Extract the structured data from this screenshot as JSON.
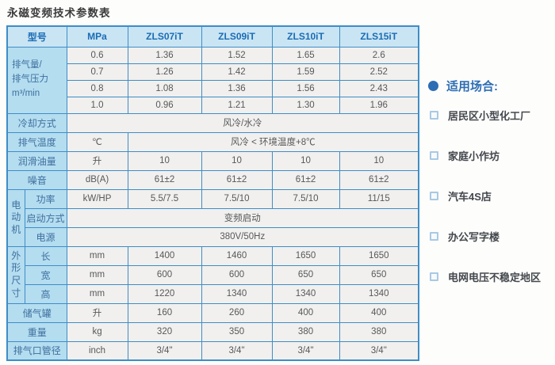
{
  "title": "永磁变频技术参数表",
  "colors": {
    "table_border": "#3f8dc6",
    "header_bg": "#c9e5f4",
    "label_bg": "#b4ddf0",
    "cell_bg": "#f1f0ee",
    "header_text": "#1b6cb5",
    "label_text": "#3f6f9e",
    "value_text": "#57585a",
    "accent": "#2d6db4"
  },
  "table": {
    "header": [
      {
        "t": "型号",
        "cs": 2
      },
      {
        "t": "MPa"
      },
      {
        "t": "ZLS07iT"
      },
      {
        "t": "ZLS09iT"
      },
      {
        "t": "ZLS10iT"
      },
      {
        "t": "ZLS15iT"
      }
    ],
    "rows": [
      [
        {
          "t": "排气量/\n排气压力\nm³/min",
          "c": "lab left",
          "cs": 2,
          "rs": 4
        },
        {
          "t": "0.6"
        },
        {
          "t": "1.36"
        },
        {
          "t": "1.52"
        },
        {
          "t": "1.65"
        },
        {
          "t": "2.6"
        }
      ],
      [
        {
          "t": "0.7"
        },
        {
          "t": "1.26"
        },
        {
          "t": "1.42"
        },
        {
          "t": "1.59"
        },
        {
          "t": "2.52"
        }
      ],
      [
        {
          "t": "0.8"
        },
        {
          "t": "1.08"
        },
        {
          "t": "1.36"
        },
        {
          "t": "1.56"
        },
        {
          "t": "2.43"
        }
      ],
      [
        {
          "t": "1.0"
        },
        {
          "t": "0.96"
        },
        {
          "t": "1.21"
        },
        {
          "t": "1.30"
        },
        {
          "t": "1.96"
        }
      ],
      [
        {
          "t": "冷却方式",
          "c": "lab",
          "cs": 2
        },
        {
          "t": "风冷/水冷",
          "cs": 5
        }
      ],
      [
        {
          "t": "排气温度",
          "c": "lab",
          "cs": 2
        },
        {
          "t": "℃"
        },
        {
          "t": "风冷 < 环境温度+8℃",
          "cs": 4
        }
      ],
      [
        {
          "t": "润滑油量",
          "c": "lab",
          "cs": 2
        },
        {
          "t": "升"
        },
        {
          "t": "10"
        },
        {
          "t": "10"
        },
        {
          "t": "10"
        },
        {
          "t": "10"
        }
      ],
      [
        {
          "t": "噪音",
          "c": "lab",
          "cs": 2
        },
        {
          "t": "dB(A)"
        },
        {
          "t": "61±2"
        },
        {
          "t": "61±2"
        },
        {
          "t": "61±2"
        },
        {
          "t": "61±2"
        }
      ],
      [
        {
          "t": "电动机",
          "c": "grp",
          "rs": 3
        },
        {
          "t": "功率",
          "c": "lab"
        },
        {
          "t": "kW/HP"
        },
        {
          "t": "5.5/7.5"
        },
        {
          "t": "7.5/10"
        },
        {
          "t": "7.5/10"
        },
        {
          "t": "11/15"
        }
      ],
      [
        {
          "t": "启动方式",
          "c": "lab"
        },
        {
          "t": "变频启动",
          "cs": 5
        }
      ],
      [
        {
          "t": "电源",
          "c": "lab"
        },
        {
          "t": "380V/50Hz",
          "cs": 5
        }
      ],
      [
        {
          "t": "外形尺寸",
          "c": "grp",
          "rs": 3
        },
        {
          "t": "长",
          "c": "lab"
        },
        {
          "t": "mm"
        },
        {
          "t": "1400"
        },
        {
          "t": "1460"
        },
        {
          "t": "1650"
        },
        {
          "t": "1650"
        }
      ],
      [
        {
          "t": "宽",
          "c": "lab"
        },
        {
          "t": "mm"
        },
        {
          "t": "600"
        },
        {
          "t": "600"
        },
        {
          "t": "650"
        },
        {
          "t": "650"
        }
      ],
      [
        {
          "t": "高",
          "c": "lab"
        },
        {
          "t": "mm"
        },
        {
          "t": "1220"
        },
        {
          "t": "1340"
        },
        {
          "t": "1340"
        },
        {
          "t": "1340"
        }
      ],
      [
        {
          "t": "储气罐",
          "c": "lab",
          "cs": 2
        },
        {
          "t": "升"
        },
        {
          "t": "160"
        },
        {
          "t": "260"
        },
        {
          "t": "400"
        },
        {
          "t": "400"
        }
      ],
      [
        {
          "t": "重量",
          "c": "lab",
          "cs": 2
        },
        {
          "t": "kg"
        },
        {
          "t": "320"
        },
        {
          "t": "350"
        },
        {
          "t": "380"
        },
        {
          "t": "380"
        }
      ],
      [
        {
          "t": "排气口管径",
          "c": "lab",
          "cs": 2
        },
        {
          "t": "inch"
        },
        {
          "t": "3/4\""
        },
        {
          "t": "3/4\""
        },
        {
          "t": "3/4\""
        },
        {
          "t": "3/4\""
        }
      ]
    ]
  },
  "sidebar": {
    "heading": "适用场合:",
    "items": [
      "居民区小型化工厂",
      "家庭小作坊",
      "汽车4S店",
      "办公写字楼",
      "电网电压不稳定地区"
    ]
  }
}
